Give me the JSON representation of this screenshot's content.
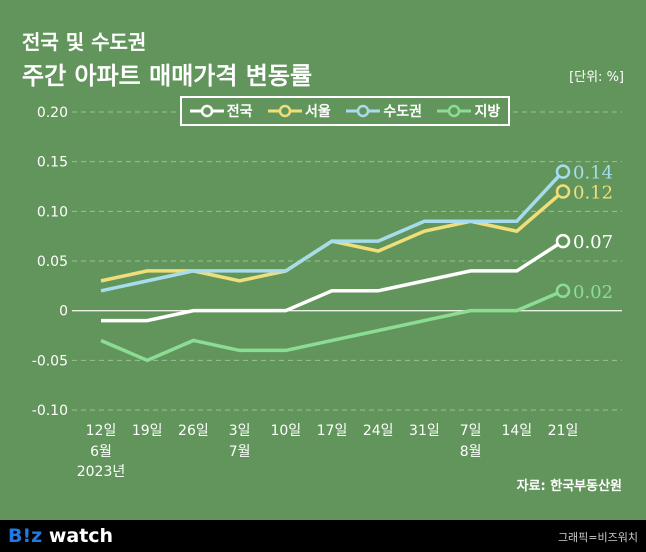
{
  "title_line1": "전국 및 수도권",
  "title_line2": "주간 아파트 매매가격 변동률",
  "unit": "[단위: %]",
  "source": "자료: 한국부동산원",
  "footer": {
    "logo_blue": "B!z",
    "logo_white": " watch",
    "credit": "그래픽=비즈워치"
  },
  "colors": {
    "background": "#62955b",
    "전국": "#ffffff",
    "서울": "#f0de7a",
    "수도권": "#a6dcec",
    "지방": "#8cdc94"
  },
  "chart_data": {
    "type": "line",
    "categories": [
      "12일",
      "19일",
      "26일",
      "3일",
      "10일",
      "17일",
      "24일",
      "31일",
      "7일",
      "14일",
      "21일"
    ],
    "category_sublabels": [
      "6월\n2023년",
      "",
      "",
      "7월",
      "",
      "",
      "",
      "",
      "8월",
      "",
      ""
    ],
    "yticks": [
      "0.20",
      "0.15",
      "0.10",
      "0.05",
      "0",
      "-0.05",
      "-0.10"
    ],
    "ylim": [
      -0.1,
      0.2
    ],
    "grid": true,
    "legend": "top",
    "series": [
      {
        "name": "전국",
        "values": [
          -0.01,
          -0.01,
          0,
          0,
          0,
          0.02,
          0.02,
          0.03,
          0.04,
          0.04,
          0.07
        ],
        "end_label": "0.07"
      },
      {
        "name": "서울",
        "values": [
          0.03,
          0.04,
          0.04,
          0.03,
          0.04,
          0.07,
          0.06,
          0.08,
          0.09,
          0.08,
          0.12
        ],
        "end_label": "0.12"
      },
      {
        "name": "수도권",
        "values": [
          0.02,
          0.03,
          0.04,
          0.04,
          0.04,
          0.07,
          0.07,
          0.09,
          0.09,
          0.09,
          0.14
        ],
        "end_label": "0.14"
      },
      {
        "name": "지방",
        "values": [
          -0.03,
          -0.05,
          -0.03,
          -0.04,
          -0.04,
          -0.03,
          -0.02,
          -0.01,
          0,
          0,
          0.02
        ],
        "end_label": "0.02"
      }
    ]
  }
}
